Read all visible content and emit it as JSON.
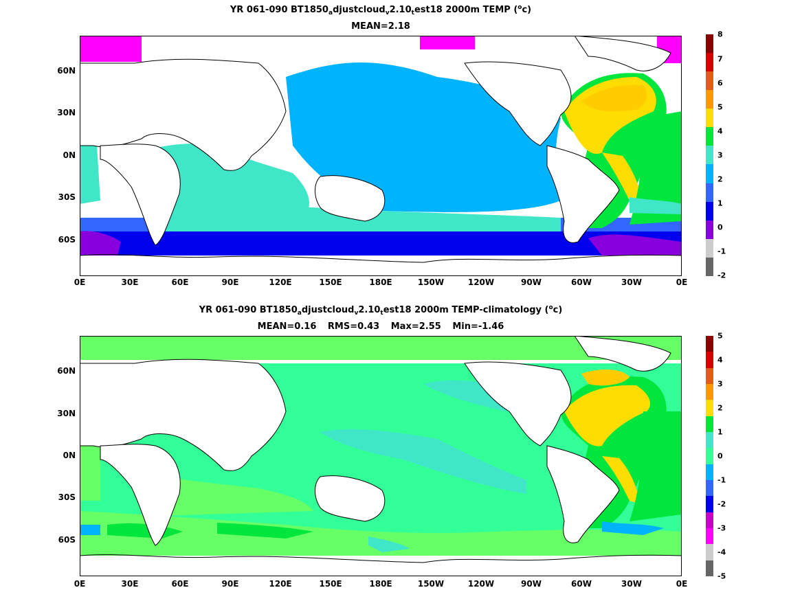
{
  "top": {
    "title_a": "YR 061-090 BT1850",
    "title_s1": "a",
    "title_b": "djustcloud",
    "title_s2": "v",
    "title_c": "2.10",
    "title_s3": "t",
    "title_d": "est18 2000m TEMP (",
    "title_sup": "o",
    "title_e": "c)",
    "subtitle": "MEAN=2.18",
    "colorbar_ticks": [
      "8",
      "7",
      "6",
      "5",
      "4",
      "3",
      "2",
      "1",
      "0",
      "-1",
      "-2"
    ],
    "colorbar_colors": [
      "#8b0000",
      "#d90000",
      "#e85a1a",
      "#ff9900",
      "#ffdd00",
      "#00e63d",
      "#40e6c8",
      "#00b3ff",
      "#3366ff",
      "#0000ee",
      "#8800dd",
      "#cccccc",
      "#666666"
    ]
  },
  "bottom": {
    "title_a": "YR 061-090 BT1850",
    "title_s1": "a",
    "title_b": "djustcloud",
    "title_s2": "v",
    "title_c": "2.10",
    "title_s3": "t",
    "title_d": "est18 2000m TEMP-climatology (",
    "title_sup": "o",
    "title_e": "c)",
    "stat_mean": "MEAN=0.16",
    "stat_rms": "RMS=0.43",
    "stat_max": "Max=2.55",
    "stat_min": "Min=-1.46",
    "colorbar_ticks": [
      "5",
      "4",
      "3",
      "2",
      "1",
      "0",
      "-1",
      "-2",
      "-3",
      "-4",
      "-5"
    ],
    "colorbar_colors": [
      "#8b0000",
      "#d90000",
      "#e85a1a",
      "#ff9900",
      "#ffdd00",
      "#00e63d",
      "#40e6c8",
      "#33ff99",
      "#00b3ff",
      "#3366ff",
      "#0000ee",
      "#cc00cc",
      "#ff00ff",
      "#cccccc",
      "#666666"
    ]
  },
  "lon_ticks": [
    "0E",
    "30E",
    "60E",
    "90E",
    "120E",
    "150E",
    "180E",
    "150W",
    "120W",
    "90W",
    "60W",
    "30W",
    "0E"
  ],
  "lat_ticks": [
    "60N",
    "30N",
    "0N",
    "30S",
    "60S"
  ]
}
